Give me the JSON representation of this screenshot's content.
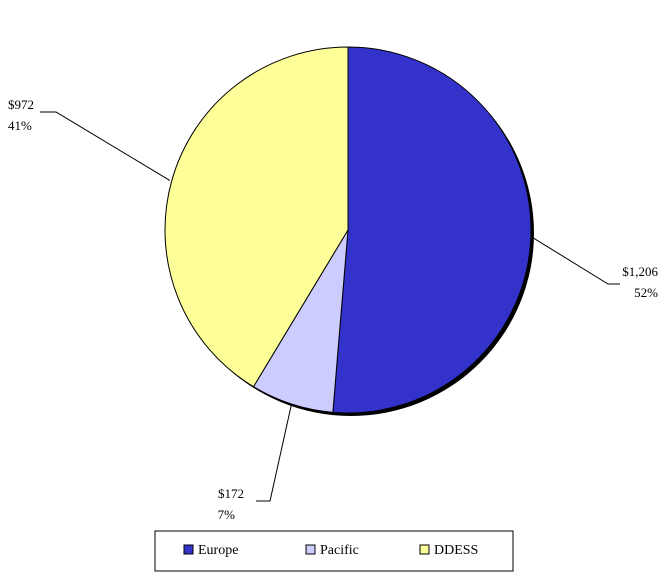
{
  "chart_data": {
    "type": "pie",
    "title": "",
    "slices": [
      {
        "name": "Europe",
        "value": 1206,
        "value_label": "$1,206",
        "percent_label": "52%",
        "color": "#3333CC"
      },
      {
        "name": "Pacific",
        "value": 172,
        "value_label": "$172",
        "percent_label": "7%",
        "color": "#CCCCFF"
      },
      {
        "name": "DDESS",
        "value": 972,
        "value_label": "$972",
        "percent_label": "41%",
        "color": "#FFFF99"
      }
    ],
    "start_angle_deg": 0,
    "direction": "clockwise",
    "legend": {
      "placement": "bottom",
      "entries": [
        "Europe",
        "Pacific",
        "DDESS"
      ]
    }
  }
}
